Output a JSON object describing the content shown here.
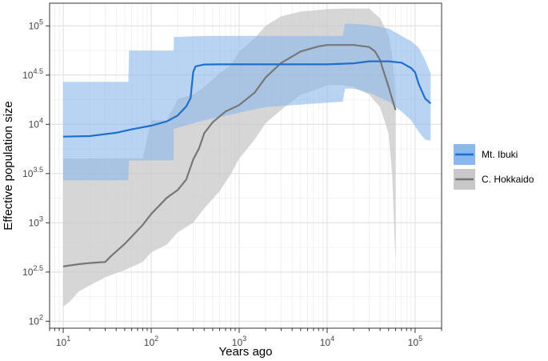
{
  "chart_data": {
    "type": "line",
    "title": "",
    "xlabel": "Years ago",
    "ylabel": "Effective population size",
    "x_scale": "log",
    "y_scale": "log",
    "xlim": [
      7,
      200000
    ],
    "ylim": [
      85,
      170000
    ],
    "grid": true,
    "legend_position": "right",
    "x_ticks": [
      {
        "value": 10,
        "base": "10",
        "exp": "1"
      },
      {
        "value": 100,
        "base": "10",
        "exp": "2"
      },
      {
        "value": 1000,
        "base": "10",
        "exp": "3"
      },
      {
        "value": 10000,
        "base": "10",
        "exp": "4"
      },
      {
        "value": 100000,
        "base": "10",
        "exp": "5"
      }
    ],
    "y_ticks": [
      {
        "value": 100,
        "base": "10",
        "exp": "2"
      },
      {
        "value": 316,
        "base": "10",
        "exp": "2.5"
      },
      {
        "value": 1000,
        "base": "10",
        "exp": "3"
      },
      {
        "value": 3162,
        "base": "10",
        "exp": "3.5"
      },
      {
        "value": 10000,
        "base": "10",
        "exp": "4"
      },
      {
        "value": 31623,
        "base": "10",
        "exp": "4.5"
      },
      {
        "value": 100000,
        "base": "10",
        "exp": "5"
      }
    ],
    "series": [
      {
        "name": "Mt. Ibuki",
        "color": "#1f6fcc",
        "band_color": "#8ab8ea",
        "x": [
          10,
          20,
          40,
          60,
          100,
          150,
          200,
          250,
          280,
          300,
          320,
          400,
          600,
          1000,
          3000,
          10000,
          20000,
          30000,
          50000,
          70000,
          90000,
          100000,
          110000,
          130000,
          150000
        ],
        "y": [
          7500,
          7600,
          8200,
          8900,
          9700,
          10700,
          12300,
          15200,
          18500,
          34000,
          38800,
          40500,
          40700,
          40700,
          40700,
          40700,
          41700,
          43700,
          43700,
          42300,
          37300,
          33700,
          25700,
          18300,
          16300
        ],
        "band_x": [
          10,
          55,
          56,
          180,
          181,
          400,
          2000,
          15000,
          16000,
          20000,
          30000,
          50000,
          70000,
          90000,
          110000,
          130000,
          150000
        ],
        "band_upper": [
          27000,
          27000,
          56000,
          56000,
          77000,
          79000,
          79000,
          79000,
          105000,
          105000,
          102000,
          94000,
          79000,
          70000,
          60000,
          45000,
          33000
        ],
        "band_lower": [
          2700,
          2700,
          4300,
          4300,
          9000,
          11000,
          15000,
          17000,
          23000,
          23000,
          21000,
          17000,
          13500,
          11000,
          8400,
          7000,
          6800
        ]
      },
      {
        "name": "C. Hokkaido",
        "color": "#777777",
        "band_color": "#c8c8c8",
        "x": [
          10,
          15,
          20,
          30,
          35,
          50,
          80,
          100,
          150,
          200,
          250,
          300,
          350,
          400,
          500,
          700,
          1000,
          1500,
          2000,
          3000,
          5000,
          8000,
          10000,
          20000,
          30000,
          35000,
          40000,
          45000,
          50000,
          55000,
          60000
        ],
        "y": [
          360,
          380,
          390,
          400,
          460,
          610,
          950,
          1230,
          1790,
          2150,
          2750,
          4400,
          5700,
          8100,
          10500,
          13500,
          15700,
          21000,
          30000,
          42000,
          55000,
          62000,
          64000,
          64000,
          61000,
          55000,
          45000,
          32000,
          24000,
          18000,
          14000
        ],
        "band_x": [
          10,
          12,
          15,
          20,
          30,
          50,
          80,
          100,
          150,
          200,
          300,
          400,
          600,
          800,
          1000,
          1500,
          2000,
          3000,
          5000,
          8000,
          10000,
          15000,
          20000,
          30000,
          40000,
          50000,
          55000,
          58000,
          60000
        ],
        "band_upper": [
          4500,
          4500,
          4500,
          4500,
          4500,
          4500,
          4500,
          11000,
          11000,
          18000,
          20000,
          24000,
          33000,
          40000,
          55000,
          75000,
          100000,
          125000,
          140000,
          145000,
          148000,
          150000,
          150000,
          150000,
          120000,
          80000,
          50000,
          30000,
          20000
        ],
        "band_lower": [
          140,
          160,
          200,
          230,
          280,
          330,
          400,
          500,
          600,
          800,
          1000,
          1400,
          2100,
          3100,
          4500,
          7000,
          10300,
          14000,
          20000,
          23000,
          25000,
          25000,
          24000,
          20000,
          15000,
          8000,
          3000,
          800,
          400
        ]
      }
    ]
  },
  "legend": {
    "items": [
      {
        "label": "Mt. Ibuki",
        "line_color": "#1f6fcc",
        "box_color": "#8ab8ea"
      },
      {
        "label": "C. Hokkaido",
        "line_color": "#777777",
        "box_color": "#c8c8c8"
      }
    ]
  }
}
